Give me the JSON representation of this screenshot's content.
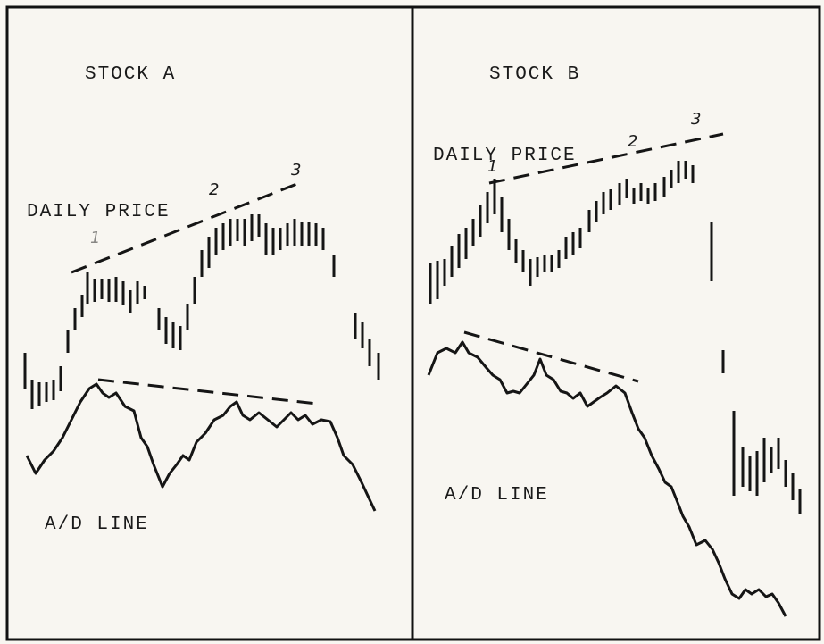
{
  "panels": [
    {
      "title": "STOCK A",
      "price_label": "DAILY PRICE",
      "ad_label": "A/D LINE",
      "marks": [
        "1",
        "2",
        "3"
      ]
    },
    {
      "title": "STOCK B",
      "price_label": "DAILY PRICE",
      "ad_label": "A/D LINE",
      "marks": [
        "1",
        "2",
        "3"
      ]
    }
  ]
}
